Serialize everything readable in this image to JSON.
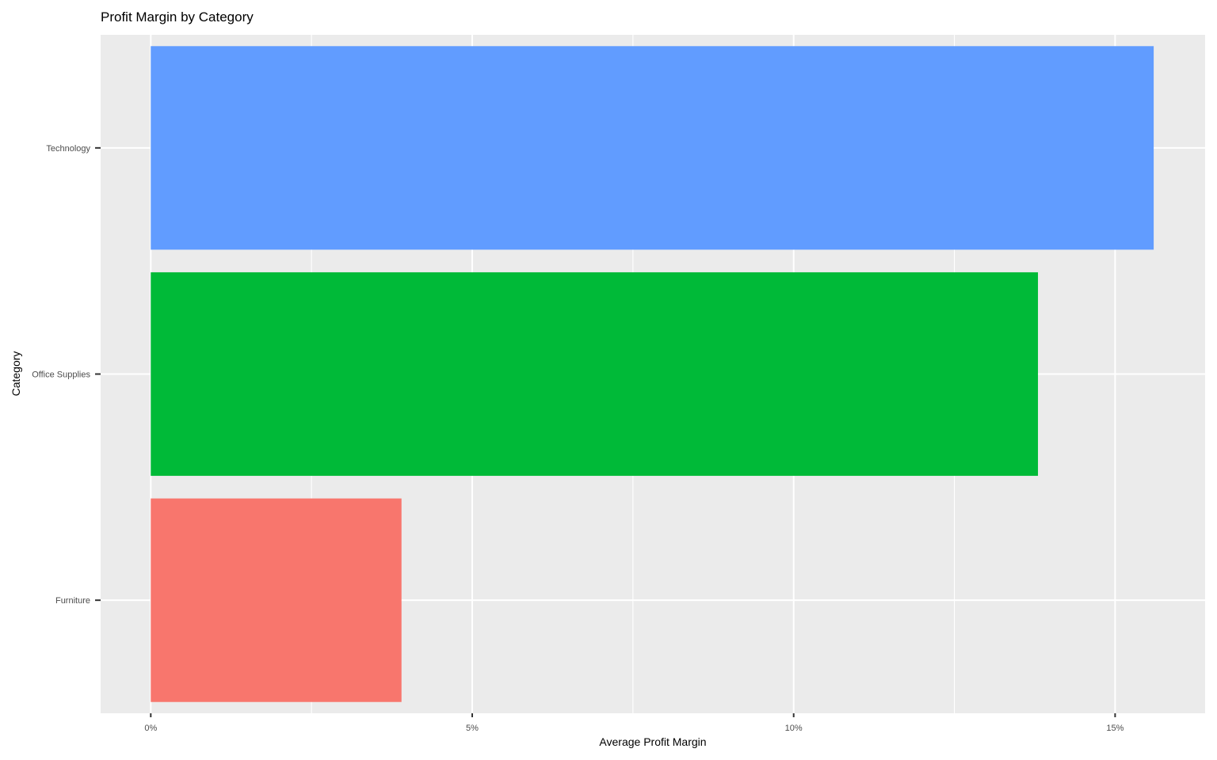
{
  "chart_data": {
    "type": "bar",
    "orientation": "horizontal",
    "title": "Profit Margin by Category",
    "xlabel": "Average Profit Margin",
    "ylabel": "Category",
    "categories": [
      "Technology",
      "Office Supplies",
      "Furniture"
    ],
    "values": [
      15.6,
      13.8,
      3.9
    ],
    "value_unit": "%",
    "xlim": [
      -0.78,
      16.4
    ],
    "xticks": [
      0,
      5,
      10,
      15
    ],
    "xtick_labels": [
      "0%",
      "5%",
      "10%",
      "15%"
    ],
    "grid": true,
    "panel_background": "#ebebeb",
    "grid_color": "#ffffff",
    "colors": {
      "Technology": "#619cff",
      "Office Supplies": "#00ba38",
      "Furniture": "#f8766d"
    }
  }
}
